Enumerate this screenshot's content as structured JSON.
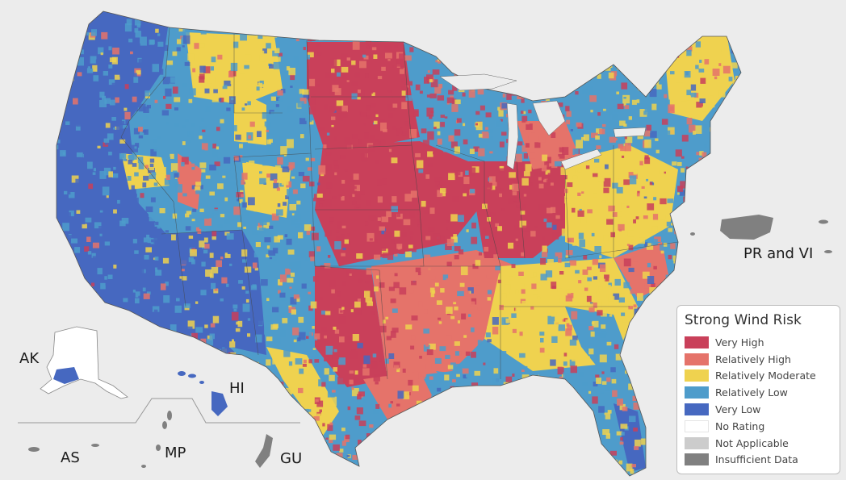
{
  "map": {
    "background": "#ececec",
    "risk_colors": {
      "very_high": "#c9405a",
      "relatively_high": "#e5736a",
      "relatively_moderate": "#efd24f",
      "relatively_low": "#4e9ccb",
      "very_low": "#4668c0",
      "no_rating": "#ffffff",
      "not_applicable": "#cccccc",
      "insufficient_data": "#808080"
    },
    "territory_labels": {
      "ak": "AK",
      "hi": "HI",
      "pr_vi": "PR and VI",
      "as": "AS",
      "mp": "MP",
      "gu": "GU"
    }
  },
  "legend": {
    "title": "Strong Wind Risk",
    "items": [
      {
        "label": "Very High",
        "color": "#c9405a"
      },
      {
        "label": "Relatively High",
        "color": "#e5736a"
      },
      {
        "label": "Relatively Moderate",
        "color": "#efd24f"
      },
      {
        "label": "Relatively Low",
        "color": "#4e9ccb"
      },
      {
        "label": "Very Low",
        "color": "#4668c0"
      },
      {
        "label": "No Rating",
        "color": "#ffffff"
      },
      {
        "label": "Not Applicable",
        "color": "#cccccc"
      },
      {
        "label": "Insufficient Data",
        "color": "#808080"
      }
    ]
  }
}
